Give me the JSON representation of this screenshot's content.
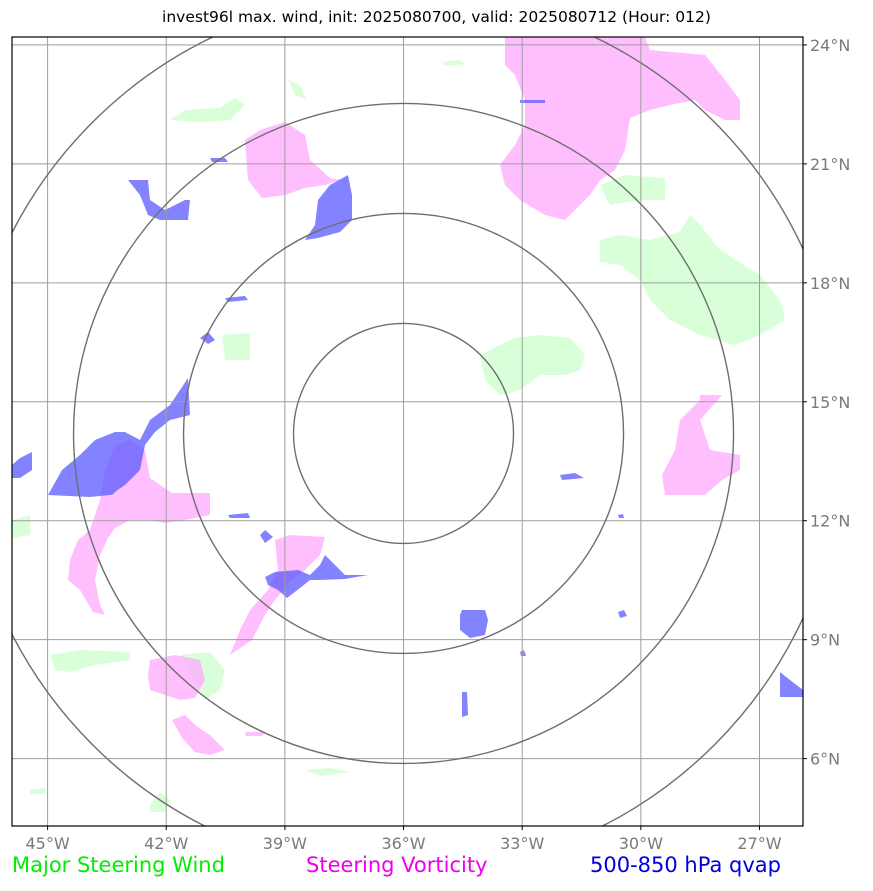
{
  "title": "invest96l max. wind, init: 2025080700, valid: 2025080712 (Hour: 012)",
  "map": {
    "lon_labels": [
      "45°W",
      "42°W",
      "39°W",
      "36°W",
      "33°W",
      "30°W",
      "27°W"
    ],
    "lat_labels": [
      "24°N",
      "21°N",
      "18°N",
      "15°N",
      "12°N",
      "9°N",
      "6°N"
    ],
    "extent": {
      "lon_min": -45.9,
      "lon_max": -25.9,
      "lat_min": 4.3,
      "lat_max": 24.2
    },
    "center": {
      "lon": -36.0,
      "lat": 14.2
    },
    "range_ring_count": 4,
    "colors": {
      "steering_wind": "#ccffcc",
      "steering_vorticity": "#ffaaff",
      "qvap": "#5a5aff",
      "grid": "#9e9e9e",
      "ring": "#6e6e6e"
    }
  },
  "legend": {
    "wind": {
      "label": "Major Steering Wind",
      "color": "#00ee00"
    },
    "vorticity": {
      "label": "Steering Vorticity",
      "color": "#ee00ee"
    },
    "qvap": {
      "label": "500-850 hPa qvap",
      "color": "#0000dd"
    }
  }
}
